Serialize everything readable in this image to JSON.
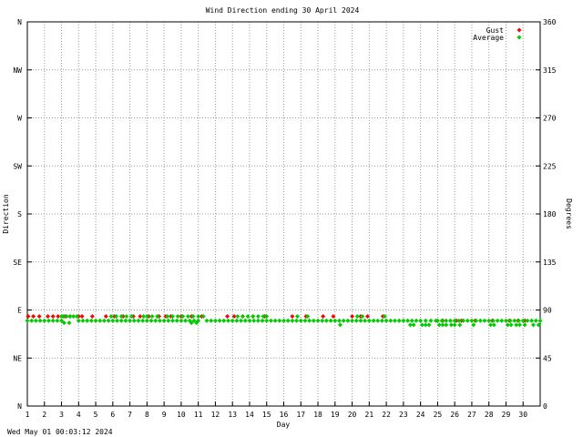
{
  "chart_data": {
    "type": "scatter",
    "title": "Wind Direction ending 30 April 2024",
    "xlabel": "Day",
    "ylabel_left": "Direction",
    "ylabel_right": "Degrees",
    "timestamp": "Wed May 01 00:03:12 2024",
    "x_ticks": [
      "1",
      "2",
      "3",
      "4",
      "5",
      "6",
      "7",
      "8",
      "9",
      "10",
      "11",
      "12",
      "13",
      "14",
      "15",
      "16",
      "17",
      "18",
      "19",
      "20",
      "21",
      "22",
      "23",
      "24",
      "25",
      "26",
      "27",
      "28",
      "29",
      "30"
    ],
    "xlim": [
      1,
      31
    ],
    "ylim": [
      0,
      360
    ],
    "y_ticks_left": [
      {
        "value": 0,
        "label": "N"
      },
      {
        "value": 45,
        "label": "NE"
      },
      {
        "value": 90,
        "label": "E"
      },
      {
        "value": 135,
        "label": "SE"
      },
      {
        "value": 180,
        "label": "S"
      },
      {
        "value": 225,
        "label": "SW"
      },
      {
        "value": 270,
        "label": "W"
      },
      {
        "value": 315,
        "label": "NW"
      },
      {
        "value": 360,
        "label": "N"
      }
    ],
    "y_ticks_right": [
      0,
      45,
      90,
      135,
      180,
      225,
      270,
      315,
      360
    ],
    "grid": true,
    "legend_position": "top-right",
    "series": [
      {
        "name": "Gust",
        "color": "#ff0000",
        "points": [
          [
            1.05,
            84
          ],
          [
            1.35,
            84
          ],
          [
            1.7,
            84
          ],
          [
            2.2,
            84
          ],
          [
            2.5,
            84
          ],
          [
            2.8,
            84
          ],
          [
            3.2,
            84
          ],
          [
            3.5,
            84
          ],
          [
            4.0,
            84
          ],
          [
            4.2,
            84
          ],
          [
            4.8,
            84
          ],
          [
            5.6,
            84
          ],
          [
            6.1,
            84
          ],
          [
            6.6,
            84
          ],
          [
            7.2,
            84
          ],
          [
            7.6,
            84
          ],
          [
            8.1,
            84
          ],
          [
            8.7,
            84
          ],
          [
            9.1,
            84
          ],
          [
            9.4,
            84
          ],
          [
            10.0,
            84
          ],
          [
            10.6,
            84
          ],
          [
            11.2,
            84
          ],
          [
            12.7,
            84
          ],
          [
            13.1,
            84
          ],
          [
            13.6,
            84
          ],
          [
            14.2,
            84
          ],
          [
            14.9,
            84
          ],
          [
            16.5,
            84
          ],
          [
            17.3,
            84
          ],
          [
            18.3,
            84
          ],
          [
            18.9,
            84
          ],
          [
            20.0,
            84
          ],
          [
            20.5,
            84
          ],
          [
            20.9,
            84
          ],
          [
            21.8,
            84
          ],
          [
            25.3,
            80
          ],
          [
            26.1,
            80
          ],
          [
            26.4,
            80
          ],
          [
            27.2,
            80
          ],
          [
            28.2,
            80
          ],
          [
            29.2,
            80
          ],
          [
            29.7,
            80
          ],
          [
            30.1,
            80
          ]
        ]
      },
      {
        "name": "Average",
        "color": "#00cc00",
        "points": [
          [
            1.0,
            80
          ],
          [
            1.25,
            80
          ],
          [
            1.5,
            80
          ],
          [
            1.75,
            80
          ],
          [
            2.0,
            80
          ],
          [
            2.25,
            80
          ],
          [
            2.5,
            80
          ],
          [
            2.75,
            80
          ],
          [
            3.0,
            80
          ],
          [
            3.1,
            84
          ],
          [
            3.3,
            84
          ],
          [
            3.5,
            84
          ],
          [
            3.7,
            84
          ],
          [
            3.9,
            84
          ],
          [
            3.0,
            84
          ],
          [
            3.15,
            78
          ],
          [
            3.45,
            78
          ],
          [
            4.0,
            80
          ],
          [
            4.25,
            80
          ],
          [
            4.5,
            80
          ],
          [
            4.75,
            80
          ],
          [
            5.0,
            80
          ],
          [
            5.25,
            80
          ],
          [
            5.5,
            80
          ],
          [
            5.75,
            80
          ],
          [
            5.9,
            84
          ],
          [
            6.2,
            84
          ],
          [
            6.5,
            84
          ],
          [
            6.8,
            84
          ],
          [
            7.1,
            84
          ],
          [
            6.0,
            80
          ],
          [
            6.25,
            80
          ],
          [
            6.5,
            80
          ],
          [
            6.75,
            80
          ],
          [
            7.0,
            80
          ],
          [
            7.25,
            80
          ],
          [
            7.5,
            80
          ],
          [
            7.75,
            80
          ],
          [
            7.8,
            84
          ],
          [
            8.0,
            84
          ],
          [
            8.3,
            84
          ],
          [
            8.6,
            84
          ],
          [
            8.0,
            80
          ],
          [
            8.25,
            80
          ],
          [
            8.5,
            80
          ],
          [
            8.75,
            80
          ],
          [
            9.0,
            80
          ],
          [
            9.25,
            80
          ],
          [
            9.5,
            80
          ],
          [
            9.2,
            84
          ],
          [
            9.5,
            84
          ],
          [
            9.8,
            84
          ],
          [
            10.1,
            84
          ],
          [
            10.4,
            84
          ],
          [
            10.7,
            84
          ],
          [
            11.0,
            84
          ],
          [
            11.3,
            84
          ],
          [
            9.75,
            80
          ],
          [
            10.0,
            80
          ],
          [
            10.25,
            80
          ],
          [
            10.5,
            80
          ],
          [
            10.75,
            80
          ],
          [
            11.0,
            80
          ],
          [
            10.9,
            78
          ],
          [
            10.6,
            78
          ],
          [
            11.5,
            80
          ],
          [
            11.75,
            80
          ],
          [
            12.0,
            80
          ],
          [
            12.25,
            80
          ],
          [
            12.5,
            80
          ],
          [
            12.75,
            80
          ],
          [
            13.0,
            80
          ],
          [
            13.25,
            80
          ],
          [
            13.5,
            80
          ],
          [
            13.75,
            80
          ],
          [
            13.3,
            84
          ],
          [
            13.6,
            84
          ],
          [
            13.9,
            84
          ],
          [
            14.2,
            84
          ],
          [
            14.5,
            84
          ],
          [
            14.8,
            84
          ],
          [
            14.0,
            80
          ],
          [
            14.25,
            80
          ],
          [
            14.5,
            80
          ],
          [
            14.75,
            80
          ],
          [
            15.0,
            80
          ],
          [
            15.0,
            84
          ],
          [
            15.25,
            80
          ],
          [
            15.5,
            80
          ],
          [
            15.75,
            80
          ],
          [
            16.0,
            80
          ],
          [
            16.25,
            80
          ],
          [
            16.5,
            80
          ],
          [
            16.75,
            80
          ],
          [
            16.8,
            84
          ],
          [
            17.0,
            80
          ],
          [
            17.25,
            80
          ],
          [
            17.5,
            80
          ],
          [
            17.4,
            84
          ],
          [
            17.75,
            80
          ],
          [
            18.0,
            80
          ],
          [
            18.25,
            80
          ],
          [
            18.5,
            80
          ],
          [
            18.75,
            80
          ],
          [
            19.0,
            80
          ],
          [
            19.25,
            80
          ],
          [
            19.3,
            76
          ],
          [
            19.5,
            80
          ],
          [
            19.75,
            80
          ],
          [
            20.0,
            80
          ],
          [
            20.25,
            80
          ],
          [
            20.3,
            84
          ],
          [
            20.6,
            84
          ],
          [
            20.5,
            80
          ],
          [
            20.75,
            80
          ],
          [
            21.0,
            80
          ],
          [
            21.25,
            80
          ],
          [
            21.5,
            80
          ],
          [
            21.75,
            80
          ],
          [
            21.9,
            84
          ],
          [
            22.0,
            80
          ],
          [
            22.25,
            80
          ],
          [
            22.5,
            80
          ],
          [
            22.75,
            80
          ],
          [
            23.0,
            80
          ],
          [
            23.25,
            80
          ],
          [
            23.4,
            76
          ],
          [
            23.6,
            76
          ],
          [
            23.5,
            80
          ],
          [
            23.75,
            80
          ],
          [
            24.0,
            80
          ],
          [
            24.1,
            76
          ],
          [
            24.3,
            76
          ],
          [
            24.5,
            76
          ],
          [
            24.3,
            80
          ],
          [
            24.6,
            80
          ],
          [
            24.9,
            80
          ],
          [
            25.0,
            80
          ],
          [
            25.1,
            76
          ],
          [
            25.3,
            76
          ],
          [
            25.5,
            76
          ],
          [
            25.25,
            80
          ],
          [
            25.5,
            80
          ],
          [
            25.75,
            80
          ],
          [
            25.8,
            76
          ],
          [
            26.0,
            76
          ],
          [
            26.0,
            80
          ],
          [
            26.25,
            80
          ],
          [
            26.3,
            76
          ],
          [
            26.5,
            80
          ],
          [
            26.75,
            80
          ],
          [
            27.0,
            80
          ],
          [
            27.1,
            76
          ],
          [
            27.25,
            80
          ],
          [
            27.5,
            80
          ],
          [
            27.75,
            80
          ],
          [
            28.0,
            80
          ],
          [
            28.1,
            76
          ],
          [
            28.3,
            76
          ],
          [
            28.25,
            80
          ],
          [
            28.5,
            80
          ],
          [
            28.75,
            80
          ],
          [
            29.0,
            80
          ],
          [
            29.1,
            76
          ],
          [
            29.3,
            76
          ],
          [
            29.25,
            80
          ],
          [
            29.5,
            80
          ],
          [
            29.6,
            76
          ],
          [
            29.8,
            76
          ],
          [
            29.75,
            80
          ],
          [
            30.0,
            80
          ],
          [
            30.1,
            76
          ],
          [
            30.25,
            80
          ],
          [
            30.5,
            80
          ],
          [
            30.6,
            76
          ],
          [
            30.75,
            80
          ],
          [
            30.9,
            76
          ],
          [
            31.0,
            80
          ]
        ]
      }
    ]
  }
}
